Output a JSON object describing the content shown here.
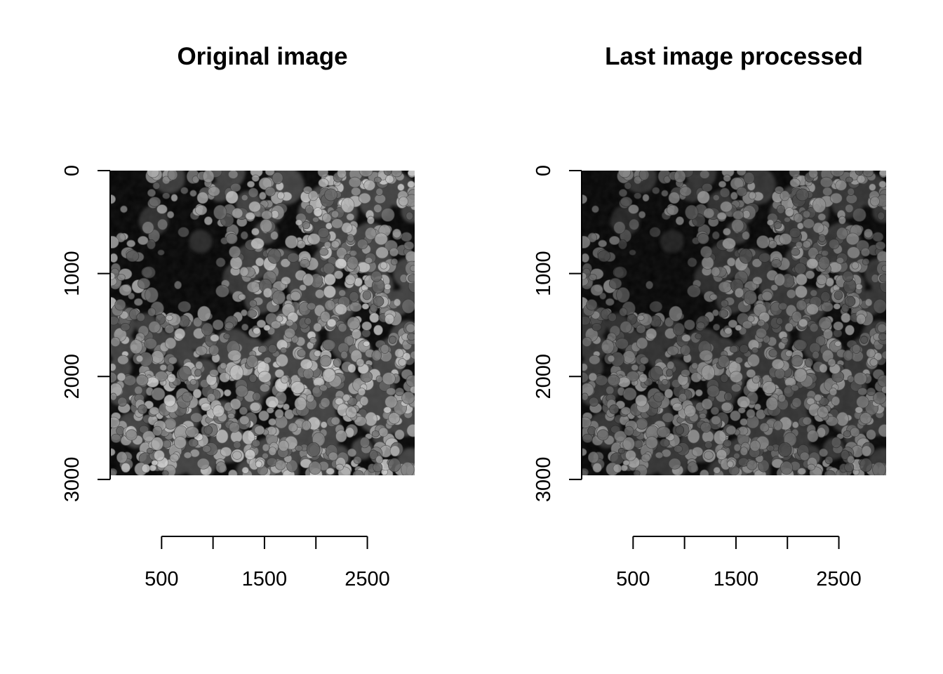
{
  "chart_data": [
    {
      "type": "heatmap",
      "title": "Original image",
      "xlabel": "",
      "ylabel": "",
      "x_ticks": [
        500,
        1000,
        1500,
        2000,
        2500
      ],
      "x_tick_labels": [
        "500",
        "1500",
        "2500"
      ],
      "x_tick_label_values": [
        500,
        1500,
        2500
      ],
      "y_ticks": [
        0,
        1000,
        2000,
        3000
      ],
      "y_tick_labels": [
        "0",
        "1000",
        "2000",
        "3000"
      ],
      "image_extent": {
        "x": [
          0,
          2960
        ],
        "y": [
          0,
          2960
        ]
      },
      "colormap": "grayscale",
      "content": "fluorescence micrograph of cell nuclei",
      "brightness": 1.0,
      "grid": false
    },
    {
      "type": "heatmap",
      "title": "Last image processed",
      "xlabel": "",
      "ylabel": "",
      "x_ticks": [
        500,
        1000,
        1500,
        2000,
        2500
      ],
      "x_tick_labels": [
        "500",
        "1500",
        "2500"
      ],
      "x_tick_label_values": [
        500,
        1500,
        2500
      ],
      "y_ticks": [
        0,
        1000,
        2000,
        3000
      ],
      "y_tick_labels": [
        "0",
        "1000",
        "2000",
        "3000"
      ],
      "image_extent": {
        "x": [
          0,
          2960
        ],
        "y": [
          0,
          2960
        ]
      },
      "colormap": "grayscale",
      "content": "fluorescence micrograph of cell nuclei",
      "brightness": 0.78,
      "grid": false
    }
  ],
  "colors": {
    "background": "#ffffff",
    "axis": "#000000",
    "text": "#000000"
  }
}
